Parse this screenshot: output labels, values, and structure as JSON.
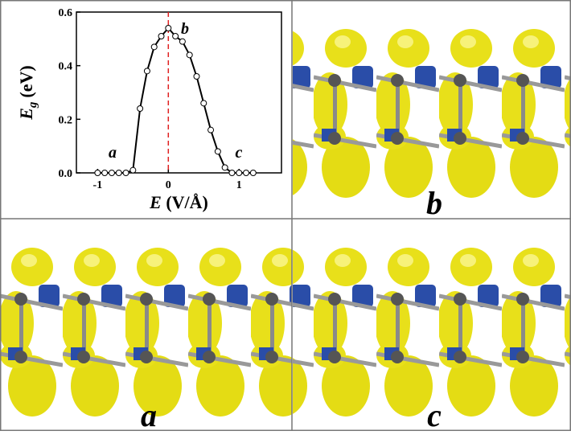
{
  "chart_data": {
    "type": "line",
    "x": [
      -1.0,
      -0.9,
      -0.8,
      -0.7,
      -0.6,
      -0.5,
      -0.4,
      -0.3,
      -0.2,
      -0.1,
      0.0,
      0.1,
      0.2,
      0.3,
      0.4,
      0.5,
      0.6,
      0.7,
      0.8,
      0.9,
      1.0,
      1.1,
      1.2
    ],
    "series": [
      {
        "color": "#000000",
        "values": [
          0,
          0,
          0,
          0,
          0,
          0.01,
          0.24,
          0.38,
          0.47,
          0.51,
          0.54,
          0.51,
          0.49,
          0.44,
          0.36,
          0.26,
          0.16,
          0.08,
          0.02,
          0,
          0,
          0,
          0
        ]
      }
    ],
    "xlim": [
      -1.3,
      1.6
    ],
    "ylim": [
      0,
      0.6
    ],
    "xticks": [
      -1,
      0,
      1
    ],
    "yticks": [
      {
        "value": 0,
        "label": "0.0"
      },
      0.2,
      0.4,
      0.6
    ],
    "reference_line": {
      "x": 0,
      "color": "#e02020"
    },
    "x_label": {
      "symbol": "E",
      "unit": "(V/Å)"
    },
    "y_label": {
      "symbol": "E",
      "subscript": "g",
      "unit": "(eV)"
    },
    "annotations": [
      "a",
      "b",
      "c"
    ]
  },
  "panels": [
    {
      "label": "b"
    },
    {
      "label": "a"
    },
    {
      "label": "c"
    }
  ]
}
